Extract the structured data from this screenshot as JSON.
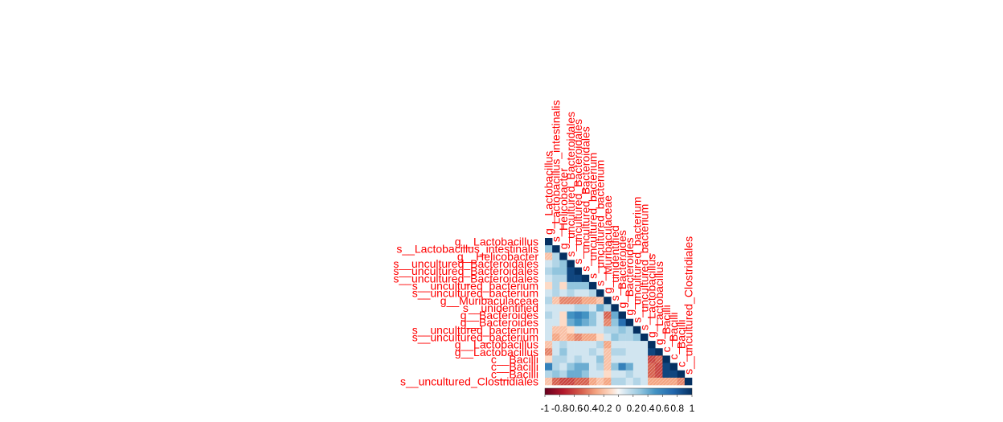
{
  "chart_data": {
    "type": "heatmap",
    "variant": "correlation-matrix-lower-triangle",
    "title": "",
    "xlabel": "",
    "ylabel": "",
    "label_color": "#ff0000",
    "negative_color": "#67001f",
    "positive_color": "#053061",
    "variables": [
      "g__Lactobacillus",
      "s__Lactobacillus_intestinalis",
      "g__Helicobacter",
      "s__uncultured_Bacteroidales",
      "s__uncultured_Bacteroidales",
      "s__uncultured_Bacteroidales",
      "s__uncultured_bacterium",
      "s__uncultured_bacterium",
      "g__Muribaculaceae",
      "s__unidentified",
      "g__Bacteroides",
      "g__Bacteroides",
      "s__uncultured_bacterium",
      "s__uncultured_bacterium",
      "g__Lactobacillus",
      "g__Lactobacillus",
      "c__Bacilli",
      "c__Bacilli",
      "c__Bacilli",
      "s__uncultured_Clostridiales"
    ],
    "matrix": [
      [
        1
      ],
      [
        0.3,
        1
      ],
      [
        -0.2,
        0.2,
        1
      ],
      [
        0.1,
        0.2,
        0.3,
        1
      ],
      [
        0.2,
        0.3,
        0.3,
        0.9,
        1
      ],
      [
        0.1,
        0.2,
        0.2,
        0.9,
        0.9,
        1
      ],
      [
        -0.1,
        0.2,
        -0.1,
        0.3,
        0.3,
        0.3,
        1
      ],
      [
        0.1,
        0.2,
        0.1,
        0.2,
        0.1,
        0.1,
        0.2,
        1
      ],
      [
        0.2,
        -0.2,
        -0.4,
        -0.4,
        -0.4,
        -0.3,
        -0.3,
        -0.2,
        1
      ],
      [
        0.1,
        0.1,
        0.1,
        0.1,
        0.2,
        0.2,
        0.1,
        0.4,
        0.2,
        1
      ],
      [
        0.2,
        0.1,
        -0.1,
        0.5,
        0.6,
        0.5,
        0.3,
        0.1,
        -0.5,
        0.4,
        1
      ],
      [
        0.1,
        0.1,
        -0.1,
        0.4,
        0.5,
        0.4,
        0.3,
        0.1,
        -0.4,
        0.3,
        0.7,
        1
      ],
      [
        0.1,
        -0.2,
        -0.2,
        -0.1,
        0.1,
        0.1,
        0.1,
        0.1,
        0.2,
        0.2,
        0.3,
        0.2,
        1
      ],
      [
        0.1,
        -0.3,
        -0.2,
        -0.3,
        -0.4,
        -0.3,
        -0.3,
        -0.1,
        0.1,
        0.3,
        0.2,
        0.2,
        0.3,
        1
      ],
      [
        -0.2,
        0.1,
        0.2,
        0.1,
        0.1,
        0.1,
        0.1,
        0.2,
        -0.3,
        0.1,
        0.1,
        0.1,
        0.1,
        0.1,
        1
      ],
      [
        -0.4,
        0.1,
        0.3,
        0.1,
        0.1,
        0.1,
        0.2,
        0.1,
        -0.2,
        0.2,
        0.2,
        0.1,
        0.1,
        0.1,
        0.9,
        1
      ],
      [
        -0.1,
        0.2,
        0.2,
        0.1,
        0.2,
        0.1,
        0.1,
        0.3,
        -0.2,
        0.1,
        0.1,
        0.1,
        0.1,
        0.1,
        -0.6,
        -0.5,
        1
      ],
      [
        0.6,
        0.2,
        0.1,
        0.3,
        0.4,
        0.4,
        0.1,
        0.2,
        -0.2,
        0.3,
        0.6,
        0.4,
        0.1,
        0.1,
        -0.5,
        -0.6,
        0.9,
        1
      ],
      [
        0.2,
        0.3,
        0.2,
        0.4,
        0.4,
        0.3,
        0.1,
        0.1,
        -0.1,
        0.1,
        0.1,
        0.2,
        0.1,
        0.1,
        -0.5,
        -0.6,
        0.9,
        0.9,
        1
      ],
      [
        -0.2,
        -0.5,
        -0.6,
        -0.6,
        -0.5,
        -0.5,
        -0.3,
        -0.2,
        -0.3,
        0.2,
        0.2,
        0.1,
        0.2,
        0.1,
        -0.3,
        -0.3,
        -0.3,
        -0.3,
        -0.4,
        1
      ]
    ],
    "colorbar": {
      "range": [
        -1,
        1
      ],
      "tick_labels": [
        "-1",
        "-0.8",
        "-0.6",
        "-0.4",
        "-0.2",
        "0",
        "0.2",
        "0.4",
        "0.6",
        "0.8",
        "1"
      ]
    }
  }
}
